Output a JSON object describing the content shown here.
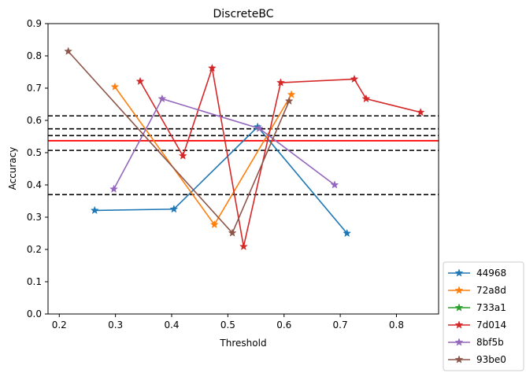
{
  "chart_data": {
    "type": "line",
    "title": "DiscreteBC",
    "xlabel": "Threshold",
    "ylabel": "Accuracy",
    "xlim": [
      0.18,
      0.875
    ],
    "ylim": [
      0.0,
      0.9
    ],
    "xticks": [
      0.2,
      0.3,
      0.4,
      0.5,
      0.6,
      0.7,
      0.8
    ],
    "yticks": [
      0.0,
      0.1,
      0.2,
      0.3,
      0.4,
      0.5,
      0.6,
      0.7,
      0.8,
      0.9
    ],
    "legend_position": "outside-bottom-right",
    "series": [
      {
        "name": "44968",
        "color": "#1f77b4",
        "x": [
          0.263,
          0.404,
          0.553,
          0.712
        ],
        "y": [
          0.321,
          0.325,
          0.58,
          0.25
        ]
      },
      {
        "name": "72a8d",
        "color": "#ff7f0e",
        "x": [
          0.299,
          0.476,
          0.613
        ],
        "y": [
          0.704,
          0.277,
          0.68
        ]
      },
      {
        "name": "733a1",
        "color": "#2ca02c",
        "x": [],
        "y": []
      },
      {
        "name": "7d014",
        "color": "#d62728",
        "x": [
          0.344,
          0.42,
          0.472,
          0.528,
          0.594,
          0.725,
          0.746,
          0.843
        ],
        "y": [
          0.721,
          0.49,
          0.762,
          0.209,
          0.717,
          0.728,
          0.667,
          0.625
        ]
      },
      {
        "name": "8bf5b",
        "color": "#9467bd",
        "x": [
          0.297,
          0.383,
          0.556,
          0.69
        ],
        "y": [
          0.387,
          0.667,
          0.575,
          0.4
        ]
      },
      {
        "name": "93be0",
        "color": "#8c564b",
        "x": [
          0.216,
          0.508,
          0.609
        ],
        "y": [
          0.814,
          0.251,
          0.66
        ]
      }
    ],
    "hlines_dashed": [
      0.614,
      0.574,
      0.553,
      0.507,
      0.37
    ],
    "hline_solid": {
      "y": 0.537,
      "color": "#ff0000"
    }
  }
}
